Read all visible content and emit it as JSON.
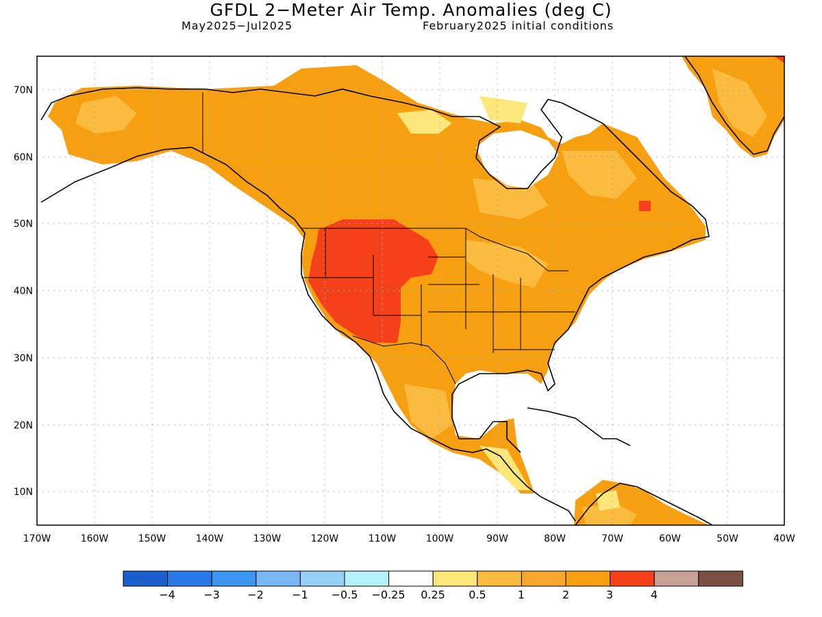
{
  "title": "GFDL 2−Meter Air Temp. Anomalies (deg C)",
  "subtitle_left": "May2025−Jul2025",
  "subtitle_right": "February2025 initial conditions",
  "map": {
    "lon_range": [
      -170,
      -40
    ],
    "lat_range": [
      5,
      75
    ],
    "lat_ticks": [
      "70N",
      "60N",
      "50N",
      "40N",
      "30N",
      "20N",
      "10N"
    ],
    "lon_ticks": [
      "170W",
      "160W",
      "150W",
      "140W",
      "130W",
      "120W",
      "110W",
      "100W",
      "90W",
      "80W",
      "70W",
      "60W",
      "50W",
      "40W"
    ],
    "grid": "dotted",
    "background": "#ffffff"
  },
  "colorbar": {
    "colors": [
      "#1a5fcd",
      "#2a78e8",
      "#3c95f0",
      "#78b9f5",
      "#97d1f7",
      "#b4f0fa",
      "#ffffff",
      "#fde67a",
      "#fbbb3e",
      "#f7a72d",
      "#f69f10",
      "#f5411a",
      "#c8a196",
      "#7b5143"
    ],
    "labels": [
      "−4",
      "−3",
      "−2",
      "−1",
      "−0.5",
      "−0.25",
      "0.25",
      "0.5",
      "1",
      "2",
      "3",
      "4"
    ]
  },
  "anomaly_colors": {
    "light_yellow": "#fde67a",
    "light_orange": "#fbbb3e",
    "orange": "#f69f10",
    "red": "#f5411a"
  }
}
